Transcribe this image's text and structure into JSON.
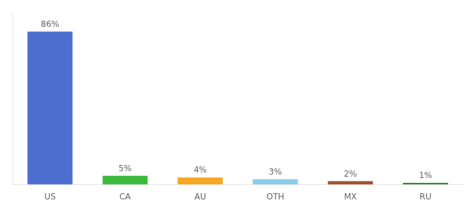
{
  "chart_data": {
    "type": "bar",
    "categories": [
      "US",
      "CA",
      "AU",
      "OTH",
      "MX",
      "RU"
    ],
    "values": [
      86,
      5,
      4,
      3,
      2,
      1
    ],
    "value_labels": [
      "86%",
      "5%",
      "4%",
      "3%",
      "2%",
      "1%"
    ],
    "colors": [
      "#4f6fd0",
      "#3dba3d",
      "#f5a623",
      "#87ceeb",
      "#a0522d",
      "#2e8b2e"
    ],
    "ylim": [
      0,
      96
    ],
    "data_labels": true,
    "tick_labels": "x",
    "grid": false
  }
}
